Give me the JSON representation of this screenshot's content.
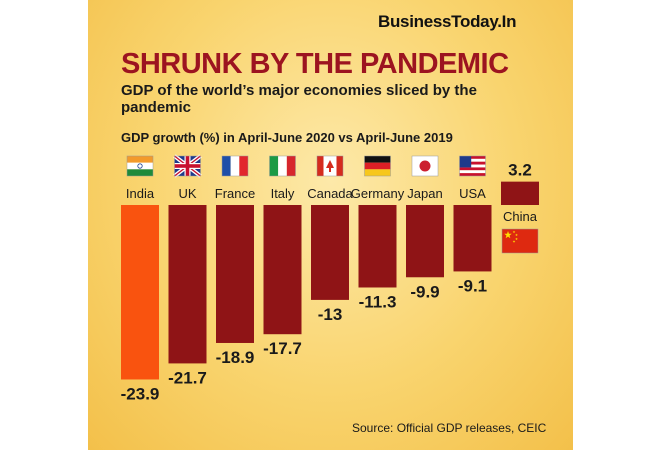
{
  "brand": "BusinessToday.In",
  "headline": "SHRUNK BY THE PANDEMIC",
  "subtitle": "GDP of the world’s major economies sliced by the pandemic",
  "source": "Source: Official GDP releases, CEIC",
  "colors": {
    "highlight": "#f9530f",
    "bar": "#8f1416",
    "text": "#1a1a1a",
    "title": "#9c1420"
  },
  "chart_data": {
    "type": "bar",
    "title": "GDP growth (%) in April-June 2020 vs April-June 2019",
    "categories": [
      "India",
      "UK",
      "France",
      "Italy",
      "Canada",
      "Germany",
      "Japan",
      "USA",
      "China"
    ],
    "values": [
      -23.9,
      -21.7,
      -18.9,
      -17.7,
      -13,
      -11.3,
      -9.9,
      -9.1,
      3.2
    ],
    "value_labels": [
      "-23.9",
      "-21.7",
      "-18.9",
      "-17.7",
      "-13",
      "-11.3",
      "-9.9",
      "-9.1",
      "3.2"
    ],
    "flags": [
      "india-flag-icon",
      "uk-flag-icon",
      "france-flag-icon",
      "italy-flag-icon",
      "canada-flag-icon",
      "germany-flag-icon",
      "japan-flag-icon",
      "usa-flag-icon",
      "china-flag-icon"
    ],
    "highlight_category": "India",
    "grid": false,
    "legend": "none"
  }
}
